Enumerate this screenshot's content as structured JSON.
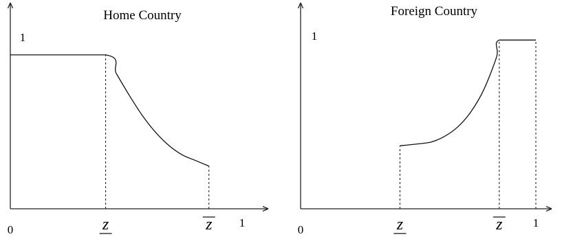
{
  "chart_data": [
    {
      "type": "line",
      "title": "Home Country",
      "x_tick_labels": [
        "0",
        "z",
        "z",
        "1"
      ],
      "y_tick_labels": [
        "1"
      ],
      "xlim": [
        0,
        1
      ],
      "ylim": [
        0,
        1
      ],
      "grid": false,
      "series": [
        {
          "x": [
            0,
            0.36,
            0.4,
            0.45,
            0.5,
            0.55,
            0.6,
            0.65,
            0.7,
            0.75
          ],
          "y": [
            0.83,
            0.83,
            0.73,
            0.61,
            0.5,
            0.41,
            0.34,
            0.29,
            0.26,
            0.23
          ]
        }
      ],
      "markers": [
        {
          "label": "z",
          "style": "underbar",
          "x": 0.36
        },
        {
          "label": "z",
          "style": "overbar",
          "x": 0.75
        }
      ]
    },
    {
      "type": "line",
      "title": "Foreign Country",
      "x_tick_labels": [
        "0",
        "z",
        "z",
        "1"
      ],
      "y_tick_labels": [
        "1"
      ],
      "xlim": [
        0,
        1
      ],
      "ylim": [
        0,
        1
      ],
      "grid": false,
      "series": [
        {
          "x": [
            0.38,
            0.45,
            0.5,
            0.55,
            0.6,
            0.65,
            0.7,
            0.75,
            0.76,
            0.9
          ],
          "y": [
            0.34,
            0.35,
            0.36,
            0.39,
            0.44,
            0.52,
            0.64,
            0.82,
            0.91,
            0.91
          ]
        }
      ],
      "markers": [
        {
          "label": "z",
          "style": "underbar",
          "x": 0.38
        },
        {
          "label": "z",
          "style": "overbar",
          "x": 0.76
        },
        {
          "label": "1",
          "style": "plain",
          "x": 0.9
        }
      ]
    }
  ]
}
